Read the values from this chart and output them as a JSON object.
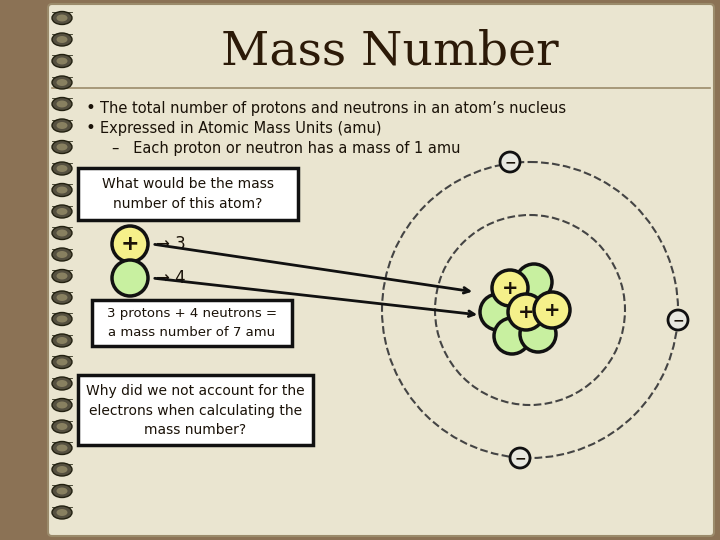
{
  "title": "Mass Number",
  "bg_outer": "#8B7255",
  "bg_inner": "#EDE8D5",
  "bg_paper": "#EAE5D0",
  "title_color": "#2C1A08",
  "text_color": "#1A1208",
  "bullet1": "The total number of protons and neutrons in an atom’s nucleus",
  "bullet2": "Expressed in Atomic Mass Units (amu)",
  "subbullet": "Each proton or neutron has a mass of 1 amu",
  "box1_lines": [
    "What would be the mass",
    "number of this atom?"
  ],
  "box2_lines": [
    "3 protons + 4 neutrons =",
    "a mass number of 7 amu"
  ],
  "box3_lines": [
    "Why did we not account for the",
    "electrons when calculating the",
    "mass number?"
  ],
  "proton_color": "#F5F08A",
  "neutron_color": "#C8F0A0",
  "electron_fill": "#E8E8E0",
  "orbit_color": "#444444",
  "nucleus_outline": "#111111",
  "arrow_color": "#111111",
  "box_outline": "#111111",
  "line_color": "#9B8B6B"
}
